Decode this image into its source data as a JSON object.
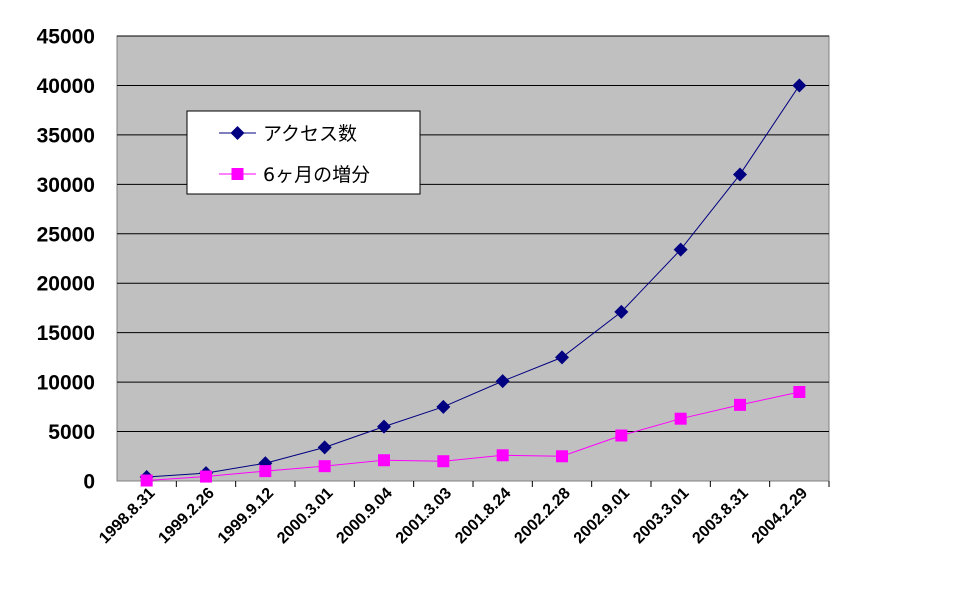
{
  "chart_data": {
    "type": "line",
    "title": "",
    "xlabel": "",
    "ylabel": "",
    "categories": [
      "1998.8.31",
      "1999.2.26",
      "1999.9.12",
      "2000.3.01",
      "2000.9.04",
      "2001.3.03",
      "2001.8.24",
      "2002.2.28",
      "2002.9.01",
      "2003.3.01",
      "2003.8.31",
      "2004.2.29"
    ],
    "ylim": [
      0,
      45000
    ],
    "yticks": [
      0,
      5000,
      10000,
      15000,
      20000,
      25000,
      30000,
      35000,
      40000,
      45000
    ],
    "grid": true,
    "legend_position": "top-left",
    "plot_background": "#c0c0c0",
    "series": [
      {
        "name": "アクセス数",
        "color": "#000080",
        "marker": "diamond",
        "values": [
          400,
          800,
          1800,
          3400,
          5500,
          7500,
          10100,
          12500,
          17100,
          23400,
          31000,
          40000
        ]
      },
      {
        "name": "6ヶ月の増分",
        "color": "#ff00ff",
        "marker": "square",
        "values": [
          50,
          450,
          1000,
          1500,
          2100,
          2000,
          2600,
          2500,
          4600,
          6300,
          7700,
          9000
        ]
      }
    ]
  }
}
